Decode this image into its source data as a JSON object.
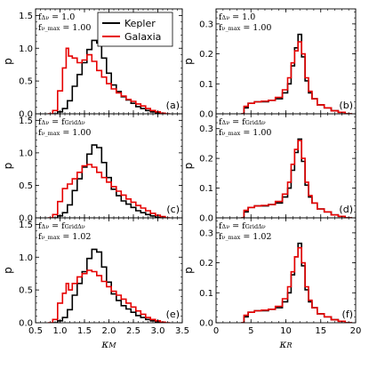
{
  "chart_data": [
    {
      "type": "line",
      "panel_label": "(a)",
      "annotation": [
        "f_{Δν} = 1.0",
        "f_{ν_max} = 1.00"
      ],
      "ylabel": "p",
      "xlim": [
        0.5,
        3.5
      ],
      "ylim": [
        0.0,
        1.6
      ],
      "yticks": [
        "0.0",
        "0.5",
        "1.0",
        "1.5"
      ],
      "legend": {
        "placement": "top-center",
        "entries": [
          "Kepler",
          "Galaxia"
        ]
      },
      "series": [
        {
          "name": "Kepler",
          "color": "#000000",
          "x": [
            0.9,
            1.0,
            1.1,
            1.2,
            1.3,
            1.4,
            1.5,
            1.6,
            1.7,
            1.8,
            1.9,
            2.0,
            2.1,
            2.2,
            2.3,
            2.4,
            2.5,
            2.6,
            2.7,
            2.8,
            2.9,
            3.0,
            3.1
          ],
          "y": [
            0.0,
            0.03,
            0.08,
            0.2,
            0.42,
            0.6,
            0.78,
            0.98,
            1.12,
            1.08,
            0.85,
            0.62,
            0.44,
            0.34,
            0.26,
            0.21,
            0.16,
            0.11,
            0.08,
            0.05,
            0.03,
            0.01,
            0.0
          ]
        },
        {
          "name": "Galaxia",
          "color": "#e60000",
          "x": [
            0.8,
            0.9,
            1.0,
            1.1,
            1.15,
            1.2,
            1.3,
            1.4,
            1.5,
            1.6,
            1.7,
            1.8,
            1.9,
            2.0,
            2.1,
            2.2,
            2.3,
            2.4,
            2.5,
            2.6,
            2.7,
            2.8,
            2.9,
            3.0,
            3.1,
            3.2
          ],
          "y": [
            0.0,
            0.05,
            0.35,
            0.7,
            1.0,
            0.88,
            0.85,
            0.78,
            0.82,
            0.9,
            0.8,
            0.66,
            0.56,
            0.46,
            0.38,
            0.32,
            0.27,
            0.22,
            0.19,
            0.15,
            0.12,
            0.08,
            0.05,
            0.03,
            0.01,
            0.0
          ]
        }
      ]
    },
    {
      "type": "line",
      "panel_label": "(b)",
      "annotation": [
        "f_{Δν} = 1.0",
        "f_{ν_max} = 1.00"
      ],
      "ylabel": "p",
      "xlim": [
        0,
        20
      ],
      "ylim": [
        0.0,
        0.35
      ],
      "yticks": [
        "0.0",
        "0.1",
        "0.2",
        "0.3"
      ],
      "series": [
        {
          "name": "Kepler",
          "color": "#000000",
          "x": [
            3.8,
            4.2,
            5.0,
            6.0,
            7.0,
            8.0,
            9.0,
            10.0,
            10.5,
            11.0,
            11.5,
            12.0,
            12.5,
            13.0,
            13.5,
            14.0,
            15.0,
            16.0,
            17.0,
            18.0,
            19.0
          ],
          "y": [
            0.0,
            0.02,
            0.035,
            0.04,
            0.04,
            0.045,
            0.05,
            0.07,
            0.1,
            0.16,
            0.22,
            0.265,
            0.19,
            0.11,
            0.07,
            0.05,
            0.03,
            0.02,
            0.01,
            0.005,
            0.0
          ]
        },
        {
          "name": "Galaxia",
          "color": "#e60000",
          "x": [
            3.8,
            4.2,
            5.0,
            6.0,
            7.0,
            8.0,
            9.0,
            10.0,
            10.5,
            11.0,
            11.5,
            12.0,
            12.5,
            13.0,
            13.5,
            14.0,
            15.0,
            16.0,
            17.0,
            18.0,
            19.0
          ],
          "y": [
            0.0,
            0.025,
            0.035,
            0.04,
            0.042,
            0.045,
            0.055,
            0.08,
            0.12,
            0.17,
            0.21,
            0.24,
            0.2,
            0.12,
            0.075,
            0.05,
            0.03,
            0.02,
            0.01,
            0.005,
            0.0
          ]
        }
      ]
    },
    {
      "type": "line",
      "panel_label": "(c)",
      "annotation": [
        "f_{Δν} = f^{Grid}_{Δν}",
        "f_{ν_max} = 1.00"
      ],
      "ylabel": "p",
      "xlim": [
        0.5,
        3.5
      ],
      "ylim": [
        0.0,
        1.6
      ],
      "yticks": [
        "0.0",
        "0.5",
        "1.0",
        "1.5"
      ],
      "series": [
        {
          "name": "Kepler",
          "color": "#000000",
          "x": [
            0.9,
            1.0,
            1.1,
            1.2,
            1.3,
            1.4,
            1.5,
            1.6,
            1.7,
            1.8,
            1.9,
            2.0,
            2.1,
            2.2,
            2.3,
            2.4,
            2.5,
            2.6,
            2.7,
            2.8,
            2.9,
            3.0,
            3.1
          ],
          "y": [
            0.0,
            0.03,
            0.08,
            0.2,
            0.42,
            0.6,
            0.78,
            0.98,
            1.12,
            1.08,
            0.85,
            0.62,
            0.44,
            0.34,
            0.26,
            0.21,
            0.16,
            0.11,
            0.08,
            0.05,
            0.03,
            0.01,
            0.0
          ]
        },
        {
          "name": "Galaxia",
          "color": "#e60000",
          "x": [
            0.8,
            0.9,
            1.0,
            1.1,
            1.2,
            1.3,
            1.4,
            1.5,
            1.6,
            1.7,
            1.8,
            1.9,
            2.0,
            2.1,
            2.2,
            2.3,
            2.4,
            2.5,
            2.6,
            2.7,
            2.8,
            2.9,
            3.0,
            3.1,
            3.2
          ],
          "y": [
            0.0,
            0.05,
            0.25,
            0.45,
            0.52,
            0.6,
            0.7,
            0.8,
            0.82,
            0.78,
            0.7,
            0.62,
            0.55,
            0.48,
            0.41,
            0.35,
            0.29,
            0.24,
            0.19,
            0.15,
            0.11,
            0.07,
            0.04,
            0.02,
            0.0
          ]
        }
      ]
    },
    {
      "type": "line",
      "panel_label": "(d)",
      "annotation": [
        "f_{Δν} = f^{Grid}_{Δν}",
        "f_{ν_max} = 1.00"
      ],
      "ylabel": "p",
      "xlim": [
        0,
        20
      ],
      "ylim": [
        0.0,
        0.35
      ],
      "yticks": [
        "0.0",
        "0.1",
        "0.2",
        "0.3"
      ],
      "series": [
        {
          "name": "Kepler",
          "color": "#000000",
          "x": [
            3.8,
            4.2,
            5.0,
            6.0,
            7.0,
            8.0,
            9.0,
            10.0,
            10.5,
            11.0,
            11.5,
            12.0,
            12.5,
            13.0,
            13.5,
            14.0,
            15.0,
            16.0,
            17.0,
            18.0,
            19.0
          ],
          "y": [
            0.0,
            0.02,
            0.035,
            0.04,
            0.04,
            0.045,
            0.05,
            0.07,
            0.1,
            0.16,
            0.22,
            0.265,
            0.19,
            0.11,
            0.07,
            0.05,
            0.03,
            0.02,
            0.01,
            0.005,
            0.0
          ]
        },
        {
          "name": "Galaxia",
          "color": "#e60000",
          "x": [
            3.8,
            4.2,
            5.0,
            6.0,
            7.0,
            8.0,
            9.0,
            10.0,
            10.5,
            11.0,
            11.5,
            12.0,
            12.5,
            13.0,
            13.5,
            14.0,
            15.0,
            16.0,
            17.0,
            18.0,
            19.0
          ],
          "y": [
            0.0,
            0.025,
            0.035,
            0.04,
            0.042,
            0.045,
            0.055,
            0.08,
            0.12,
            0.18,
            0.23,
            0.26,
            0.2,
            0.12,
            0.075,
            0.05,
            0.03,
            0.02,
            0.01,
            0.005,
            0.0
          ]
        }
      ]
    },
    {
      "type": "line",
      "panel_label": "(e)",
      "annotation": [
        "f_{Δν} = f^{Grid}_{Δν}",
        "f_{ν_max} = 1.02"
      ],
      "ylabel": "p",
      "xlabel": "κ_M",
      "xlim": [
        0.5,
        3.5
      ],
      "ylim": [
        0.0,
        1.6
      ],
      "yticks": [
        "0.0",
        "0.5",
        "1.0",
        "1.5"
      ],
      "xticks": [
        "0.5",
        "1.0",
        "1.5",
        "2.0",
        "2.5",
        "3.0",
        "3.5"
      ],
      "series": [
        {
          "name": "Kepler",
          "color": "#000000",
          "x": [
            0.9,
            1.0,
            1.1,
            1.2,
            1.3,
            1.4,
            1.5,
            1.6,
            1.7,
            1.8,
            1.9,
            2.0,
            2.1,
            2.2,
            2.3,
            2.4,
            2.5,
            2.6,
            2.7,
            2.8,
            2.9,
            3.0,
            3.1
          ],
          "y": [
            0.0,
            0.03,
            0.08,
            0.2,
            0.42,
            0.6,
            0.78,
            0.98,
            1.12,
            1.08,
            0.85,
            0.62,
            0.44,
            0.34,
            0.26,
            0.21,
            0.16,
            0.11,
            0.08,
            0.05,
            0.03,
            0.01,
            0.0
          ]
        },
        {
          "name": "Galaxia",
          "color": "#e60000",
          "x": [
            0.8,
            0.9,
            1.0,
            1.1,
            1.15,
            1.2,
            1.3,
            1.4,
            1.5,
            1.6,
            1.7,
            1.8,
            1.9,
            2.0,
            2.1,
            2.2,
            2.3,
            2.4,
            2.5,
            2.6,
            2.7,
            2.8,
            2.9,
            3.0,
            3.1,
            3.2
          ],
          "y": [
            0.0,
            0.05,
            0.3,
            0.45,
            0.6,
            0.5,
            0.6,
            0.7,
            0.75,
            0.8,
            0.78,
            0.72,
            0.63,
            0.55,
            0.48,
            0.42,
            0.36,
            0.3,
            0.24,
            0.18,
            0.13,
            0.08,
            0.05,
            0.03,
            0.01,
            0.0
          ]
        }
      ]
    },
    {
      "type": "line",
      "panel_label": "(f)",
      "annotation": [
        "f_{Δν} = f^{Grid}_{Δν}",
        "f_{ν_max} = 1.02"
      ],
      "ylabel": "p",
      "xlabel": "κ_R",
      "xlim": [
        0,
        20
      ],
      "ylim": [
        0.0,
        0.35
      ],
      "yticks": [
        "0.0",
        "0.1",
        "0.2",
        "0.3"
      ],
      "xticks": [
        "0",
        "5",
        "10",
        "15",
        "20"
      ],
      "series": [
        {
          "name": "Kepler",
          "color": "#000000",
          "x": [
            3.8,
            4.2,
            5.0,
            6.0,
            7.0,
            8.0,
            9.0,
            10.0,
            10.5,
            11.0,
            11.5,
            12.0,
            12.5,
            13.0,
            13.5,
            14.0,
            15.0,
            16.0,
            17.0,
            18.0,
            19.0
          ],
          "y": [
            0.0,
            0.02,
            0.035,
            0.04,
            0.04,
            0.045,
            0.05,
            0.07,
            0.1,
            0.16,
            0.22,
            0.265,
            0.19,
            0.11,
            0.07,
            0.05,
            0.03,
            0.02,
            0.01,
            0.005,
            0.0
          ]
        },
        {
          "name": "Galaxia",
          "color": "#e60000",
          "x": [
            3.8,
            4.2,
            5.0,
            6.0,
            7.0,
            8.0,
            9.0,
            10.0,
            10.5,
            11.0,
            11.5,
            12.0,
            12.5,
            13.0,
            13.5,
            14.0,
            15.0,
            16.0,
            17.0,
            18.0,
            19.0
          ],
          "y": [
            0.0,
            0.025,
            0.035,
            0.04,
            0.042,
            0.045,
            0.055,
            0.08,
            0.12,
            0.17,
            0.22,
            0.25,
            0.2,
            0.12,
            0.075,
            0.05,
            0.03,
            0.02,
            0.01,
            0.005,
            0.0
          ]
        }
      ]
    }
  ]
}
